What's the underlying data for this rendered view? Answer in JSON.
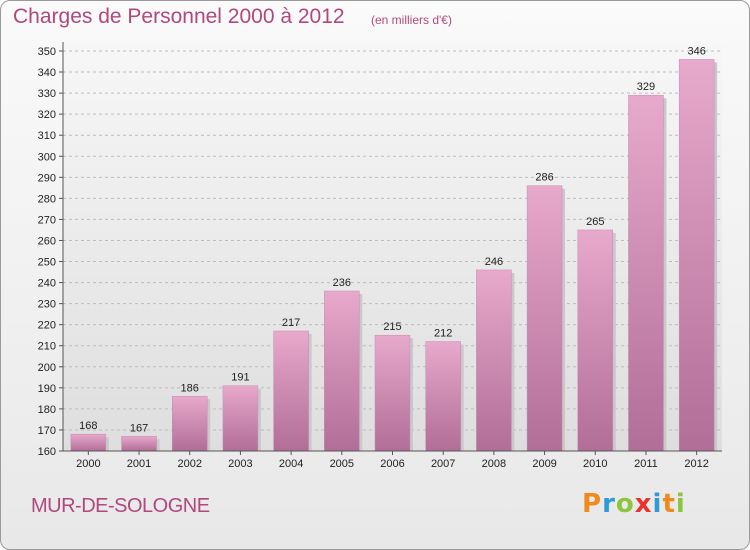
{
  "header": {
    "title": "Charges de Personnel 2000 à 2012",
    "subtitle": "(en milliers d'€)"
  },
  "footer": {
    "commune": "MUR-DE-SOLOGNE",
    "logo_text": "Proxiti",
    "logo_letters": [
      {
        "ch": "P",
        "color": "#f08a1c"
      },
      {
        "ch": "r",
        "color": "#2e9ad6"
      },
      {
        "ch": "o",
        "color": "#8cc63f"
      },
      {
        "ch": "x",
        "color": "#e8342a"
      },
      {
        "ch": "i",
        "color": "#2e9ad6"
      },
      {
        "ch": "t",
        "color": "#f08a1c"
      },
      {
        "ch": "i",
        "color": "#8cc63f"
      }
    ]
  },
  "chart_data": {
    "type": "bar",
    "title": "Charges de Personnel 2000 à 2012",
    "subtitle": "(en milliers d'€)",
    "categories": [
      "2000",
      "2001",
      "2002",
      "2003",
      "2004",
      "2005",
      "2006",
      "2007",
      "2008",
      "2009",
      "2010",
      "2011",
      "2012"
    ],
    "values": [
      168,
      167,
      186,
      191,
      217,
      236,
      215,
      212,
      246,
      286,
      265,
      329,
      346
    ],
    "ylim": [
      160,
      350
    ],
    "ytick_step": 10,
    "grid": true,
    "bar_color": "#d585b2",
    "colors": {
      "accent": "#b0487e",
      "bar_top": "#e7a9cc",
      "bar_bottom": "#b16e97"
    }
  }
}
